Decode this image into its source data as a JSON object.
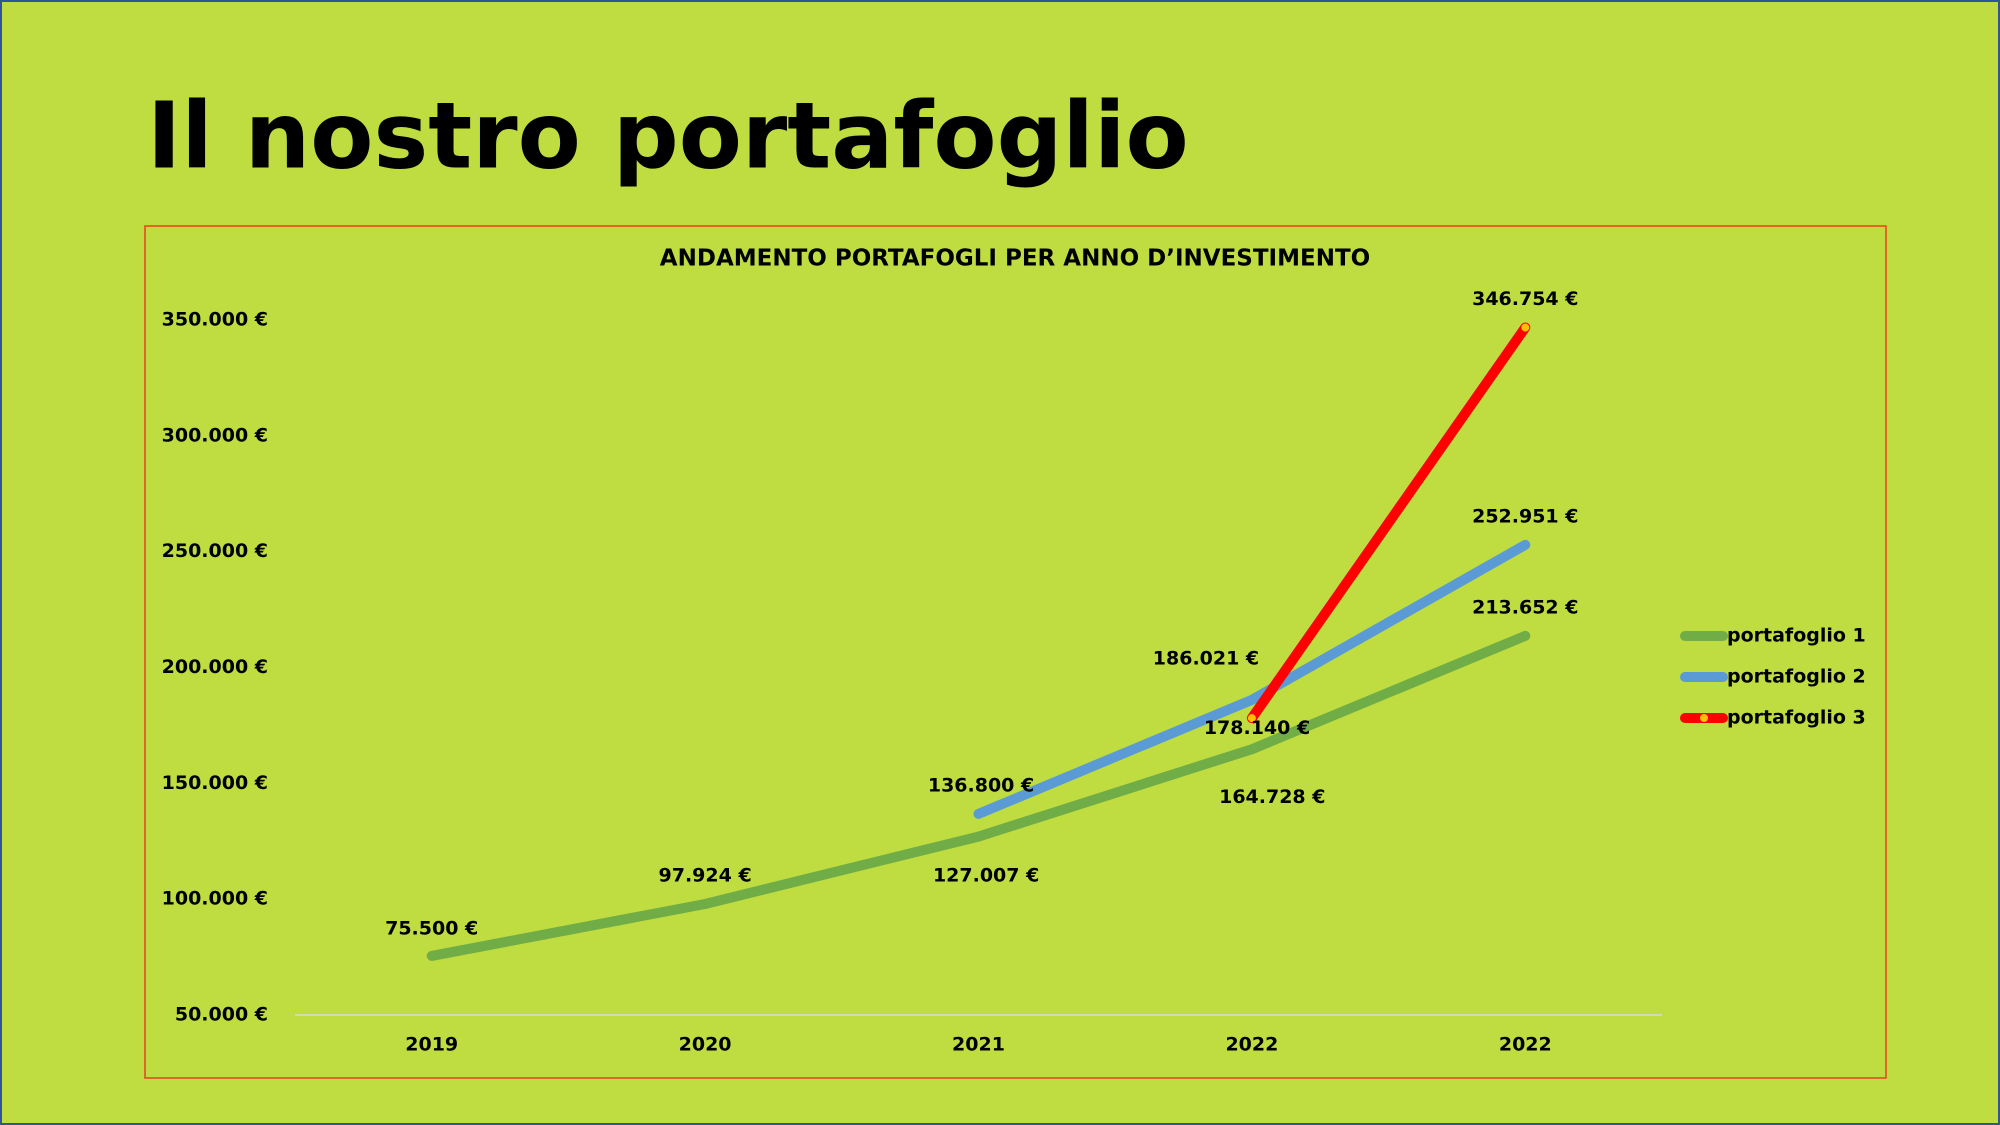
{
  "page_title": "Il nostro portafoglio",
  "chart_data": {
    "type": "line",
    "title": "ANDAMENTO PORTAFOGLI PER ANNO D’INVESTIMENTO",
    "categories": [
      "2019",
      "2020",
      "2021",
      "2022",
      "2022"
    ],
    "series": [
      {
        "name": "portafoglio 1",
        "color": "#70ad47",
        "values": [
          75500,
          97924,
          127007,
          164728,
          213652
        ],
        "value_labels": [
          "75.500 €",
          "97.924 €",
          "127.007 €",
          "164.728 €",
          "213.652 €"
        ]
      },
      {
        "name": "portafoglio 2",
        "color": "#5b9bd5",
        "values": [
          null,
          null,
          136800,
          186021,
          252951
        ],
        "value_labels": [
          null,
          null,
          "136.800 €",
          "186.021 €",
          "252.951 €"
        ]
      },
      {
        "name": "portafoglio 3",
        "color": "#ff0000",
        "marker_color": "#ffc000",
        "values": [
          null,
          null,
          null,
          178140,
          346754
        ],
        "value_labels": [
          null,
          null,
          null,
          "178.140 €",
          "346.754 €"
        ]
      }
    ],
    "ylim": [
      50000,
      350000
    ],
    "yticks": [
      {
        "value": 50000,
        "label": "50.000 €"
      },
      {
        "value": 100000,
        "label": "100.000 €"
      },
      {
        "value": 150000,
        "label": "150.000 €"
      },
      {
        "value": 200000,
        "label": "200.000 €"
      },
      {
        "value": 250000,
        "label": "250.000 €"
      },
      {
        "value": 300000,
        "label": "300.000 €"
      },
      {
        "value": 350000,
        "label": "350.000 €"
      }
    ],
    "grid": false,
    "legend": "right"
  }
}
